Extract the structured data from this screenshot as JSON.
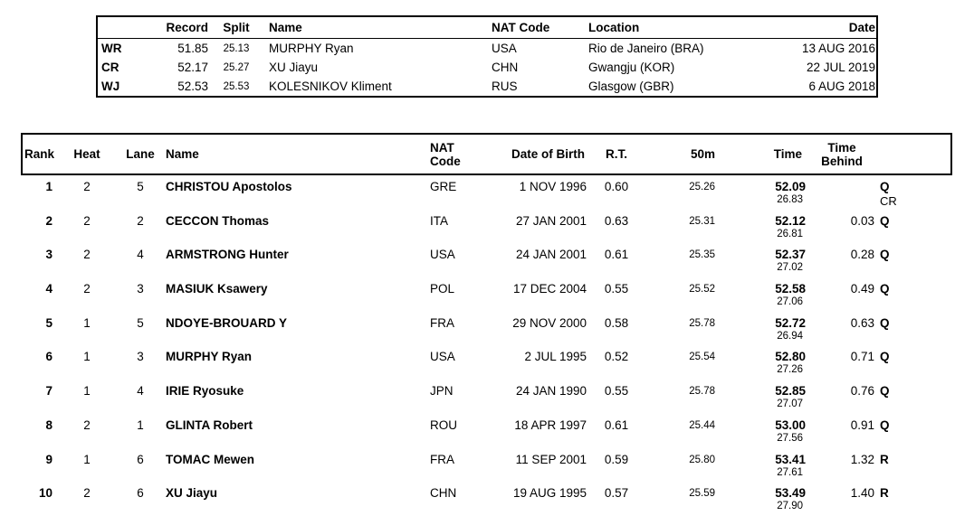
{
  "records_table": {
    "headers": {
      "record": "Record",
      "split": "Split",
      "name": "Name",
      "nat": "NAT Code",
      "location": "Location",
      "date": "Date"
    },
    "rows": [
      {
        "code": "WR",
        "record": "51.85",
        "split": "25.13",
        "name": "MURPHY Ryan",
        "nat": "USA",
        "location": "Rio de Janeiro (BRA)",
        "date": "13 AUG 2016"
      },
      {
        "code": "CR",
        "record": "52.17",
        "split": "25.27",
        "name": "XU Jiayu",
        "nat": "CHN",
        "location": "Gwangju (KOR)",
        "date": "22 JUL 2019"
      },
      {
        "code": "WJ",
        "record": "52.53",
        "split": "25.53",
        "name": "KOLESNIKOV Kliment",
        "nat": "RUS",
        "location": "Glasgow (GBR)",
        "date": "6 AUG 2018"
      }
    ]
  },
  "results_table": {
    "headers": {
      "rank": "Rank",
      "heat": "Heat",
      "lane": "Lane",
      "name": "Name",
      "nat_line1": "NAT",
      "nat_line2": "Code",
      "dob": "Date of Birth",
      "rt": "R.T.",
      "fifty": "50m",
      "time": "Time",
      "behind_line1": "Time",
      "behind_line2": "Behind"
    },
    "rows": [
      {
        "rank": "1",
        "heat": "2",
        "lane": "5",
        "name": "CHRISTOU Apostolos",
        "nat": "GRE",
        "dob": "1 NOV 1996",
        "rt": "0.60",
        "fifty": "25.26",
        "time": "52.09",
        "split2": "26.83",
        "behind": "",
        "qual": "Q",
        "note": "CR"
      },
      {
        "rank": "2",
        "heat": "2",
        "lane": "2",
        "name": "CECCON Thomas",
        "nat": "ITA",
        "dob": "27 JAN 2001",
        "rt": "0.63",
        "fifty": "25.31",
        "time": "52.12",
        "split2": "26.81",
        "behind": "0.03",
        "qual": "Q",
        "note": ""
      },
      {
        "rank": "3",
        "heat": "2",
        "lane": "4",
        "name": "ARMSTRONG Hunter",
        "nat": "USA",
        "dob": "24 JAN 2001",
        "rt": "0.61",
        "fifty": "25.35",
        "time": "52.37",
        "split2": "27.02",
        "behind": "0.28",
        "qual": "Q",
        "note": ""
      },
      {
        "rank": "4",
        "heat": "2",
        "lane": "3",
        "name": "MASIUK Ksawery",
        "nat": "POL",
        "dob": "17 DEC 2004",
        "rt": "0.55",
        "fifty": "25.52",
        "time": "52.58",
        "split2": "27.06",
        "behind": "0.49",
        "qual": "Q",
        "note": ""
      },
      {
        "rank": "5",
        "heat": "1",
        "lane": "5",
        "name": "NDOYE-BROUARD Y",
        "nat": "FRA",
        "dob": "29 NOV 2000",
        "rt": "0.58",
        "fifty": "25.78",
        "time": "52.72",
        "split2": "26.94",
        "behind": "0.63",
        "qual": "Q",
        "note": ""
      },
      {
        "rank": "6",
        "heat": "1",
        "lane": "3",
        "name": "MURPHY Ryan",
        "nat": "USA",
        "dob": "2 JUL 1995",
        "rt": "0.52",
        "fifty": "25.54",
        "time": "52.80",
        "split2": "27.26",
        "behind": "0.71",
        "qual": "Q",
        "note": ""
      },
      {
        "rank": "7",
        "heat": "1",
        "lane": "4",
        "name": "IRIE Ryosuke",
        "nat": "JPN",
        "dob": "24 JAN 1990",
        "rt": "0.55",
        "fifty": "25.78",
        "time": "52.85",
        "split2": "27.07",
        "behind": "0.76",
        "qual": "Q",
        "note": ""
      },
      {
        "rank": "8",
        "heat": "2",
        "lane": "1",
        "name": "GLINTA Robert",
        "nat": "ROU",
        "dob": "18 APR 1997",
        "rt": "0.61",
        "fifty": "25.44",
        "time": "53.00",
        "split2": "27.56",
        "behind": "0.91",
        "qual": "Q",
        "note": ""
      },
      {
        "rank": "9",
        "heat": "1",
        "lane": "6",
        "name": "TOMAC Mewen",
        "nat": "FRA",
        "dob": "11 SEP 2001",
        "rt": "0.59",
        "fifty": "25.80",
        "time": "53.41",
        "split2": "27.61",
        "behind": "1.32",
        "qual": "R",
        "note": ""
      },
      {
        "rank": "10",
        "heat": "2",
        "lane": "6",
        "name": "XU Jiayu",
        "nat": "CHN",
        "dob": "19 AUG 1995",
        "rt": "0.57",
        "fifty": "25.59",
        "time": "53.49",
        "split2": "27.90",
        "behind": "1.40",
        "qual": "R",
        "note": ""
      }
    ]
  }
}
